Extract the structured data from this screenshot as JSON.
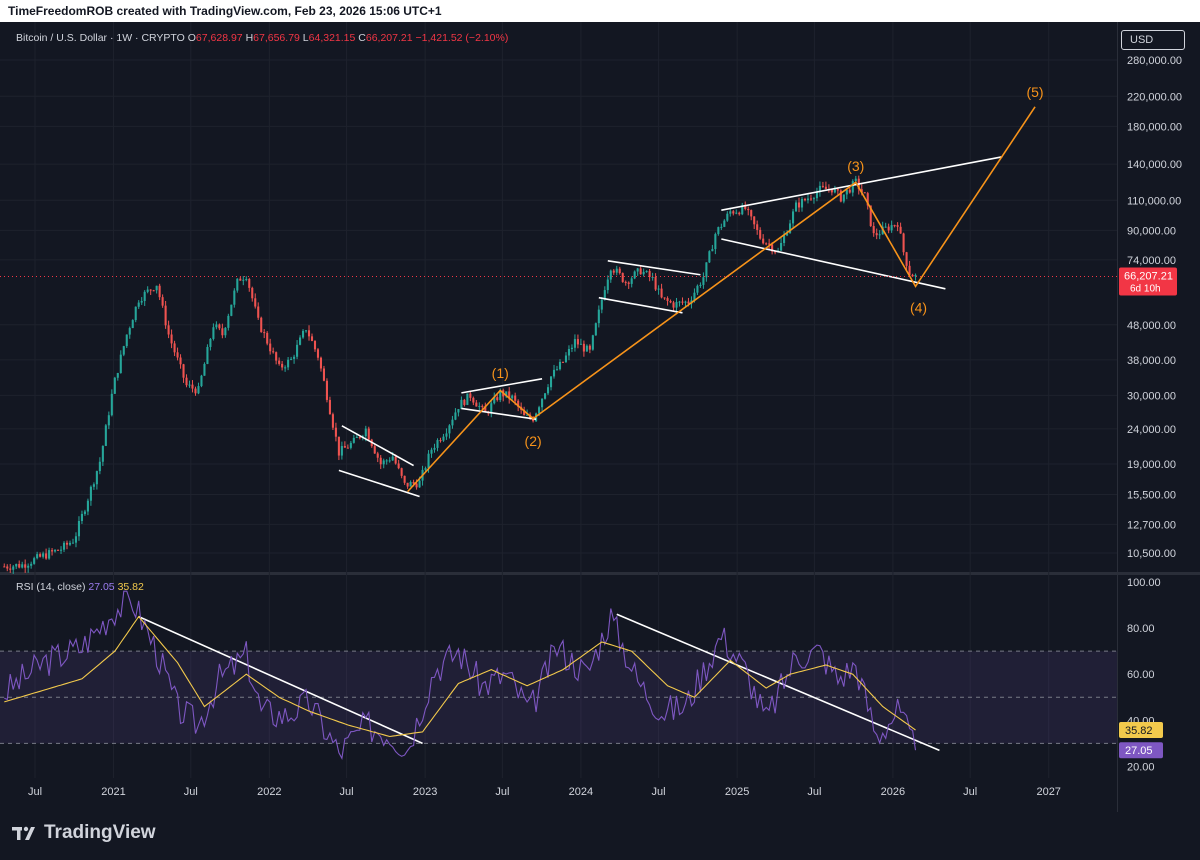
{
  "header": {
    "caption": "TimeFreedomROB created with TradingView.com, Feb 23, 2026 15:06 UTC+1"
  },
  "legend": {
    "symbol": "Bitcoin / U.S. Dollar · 1W · CRYPTO",
    "o_label": "O",
    "o_value": "67,628.97",
    "h_label": "H",
    "h_value": "67,656.79",
    "l_label": "L",
    "l_value": "64,321.15",
    "c_label": "C",
    "c_value": "66,207.21",
    "change": "−1,421.52 (−2.10%)"
  },
  "rsi_legend": {
    "label": "RSI (14, close)",
    "value": "27.05",
    "ma_value": "35.82"
  },
  "currency_button": "USD",
  "current_price": {
    "label": "66,207.21",
    "countdown": "6d 10h"
  },
  "brand": "TradingView",
  "colors": {
    "background": "#131722",
    "up": "#26a69a",
    "down": "#ef5350",
    "wave": "#f7931a",
    "trend": "#ffffff",
    "rsi": "#7e57c2",
    "rsi_ma": "#f2c94c",
    "rsi_band": "#7e57c2",
    "price_line": "#f23645"
  },
  "chart_data": [
    {
      "type": "candlestick",
      "title": "Bitcoin / U.S. Dollar · 1W · CRYPTO",
      "scale": "log",
      "ylim": [
        9500,
        320000
      ],
      "y_ticks": [
        {
          "value": 280000,
          "label": "280,000.00"
        },
        {
          "value": 220000,
          "label": "220,000.00"
        },
        {
          "value": 180000,
          "label": "180,000.00"
        },
        {
          "value": 140000,
          "label": "140,000.00"
        },
        {
          "value": 110000,
          "label": "110,000.00"
        },
        {
          "value": 90000,
          "label": "90,000.00"
        },
        {
          "value": 74000,
          "label": "74,000.00"
        },
        {
          "value": 48000,
          "label": "48,000.00"
        },
        {
          "value": 38000,
          "label": "38,000.00"
        },
        {
          "value": 30000,
          "label": "30,000.00"
        },
        {
          "value": 24000,
          "label": "24,000.00"
        },
        {
          "value": 19000,
          "label": "19,000.00"
        },
        {
          "value": 15500,
          "label": "15,500.00"
        },
        {
          "value": 12700,
          "label": "12,700.00"
        },
        {
          "value": 10500,
          "label": "10,500.00"
        }
      ],
      "x_ticks": [
        {
          "date": "2020-07-01",
          "label": "Jul"
        },
        {
          "date": "2021-01-01",
          "label": "2021"
        },
        {
          "date": "2021-07-01",
          "label": "Jul"
        },
        {
          "date": "2022-01-01",
          "label": "2022"
        },
        {
          "date": "2022-07-01",
          "label": "Jul"
        },
        {
          "date": "2023-01-01",
          "label": "2023"
        },
        {
          "date": "2023-07-01",
          "label": "Jul"
        },
        {
          "date": "2024-01-01",
          "label": "2024"
        },
        {
          "date": "2024-07-01",
          "label": "Jul"
        },
        {
          "date": "2025-01-01",
          "label": "2025"
        },
        {
          "date": "2025-07-01",
          "label": "Jul"
        },
        {
          "date": "2026-01-01",
          "label": "2026"
        },
        {
          "date": "2026-07-01",
          "label": "Jul"
        },
        {
          "date": "2027-01-01",
          "label": "2027"
        }
      ],
      "x_range": [
        "2020-04-10",
        "2027-06-10"
      ],
      "price_path": [
        [
          "2020-04-20",
          9600
        ],
        [
          "2020-06-01",
          9700
        ],
        [
          "2020-07-20",
          10300
        ],
        [
          "2020-09-01",
          10800
        ],
        [
          "2020-10-01",
          11500
        ],
        [
          "2020-11-01",
          15000
        ],
        [
          "2020-12-01",
          19500
        ],
        [
          "2021-01-01",
          32000
        ],
        [
          "2021-02-01",
          45000
        ],
        [
          "2021-03-01",
          57000
        ],
        [
          "2021-04-12",
          63000
        ],
        [
          "2021-05-10",
          45000
        ],
        [
          "2021-06-21",
          32000
        ],
        [
          "2021-07-19",
          31000
        ],
        [
          "2021-08-23",
          48000
        ],
        [
          "2021-09-13",
          45000
        ],
        [
          "2021-10-20",
          65000
        ],
        [
          "2021-11-08",
          67000
        ],
        [
          "2021-12-06",
          49000
        ],
        [
          "2022-01-24",
          36000
        ],
        [
          "2022-02-21",
          38000
        ],
        [
          "2022-03-28",
          47000
        ],
        [
          "2022-04-25",
          39000
        ],
        [
          "2022-05-16",
          30000
        ],
        [
          "2022-06-13",
          20500
        ],
        [
          "2022-07-18",
          22000
        ],
        [
          "2022-08-15",
          24000
        ],
        [
          "2022-09-19",
          19000
        ],
        [
          "2022-10-17",
          20000
        ],
        [
          "2022-11-14",
          16500
        ],
        [
          "2022-12-19",
          16800
        ],
        [
          "2023-01-16",
          21000
        ],
        [
          "2023-02-20",
          24000
        ],
        [
          "2023-03-20",
          28000
        ],
        [
          "2023-04-17",
          30000
        ],
        [
          "2023-05-22",
          26500
        ],
        [
          "2023-06-26",
          30500
        ],
        [
          "2023-07-24",
          29500
        ],
        [
          "2023-08-21",
          26000
        ],
        [
          "2023-09-11",
          25800
        ],
        [
          "2023-10-23",
          34000
        ],
        [
          "2023-11-20",
          37500
        ],
        [
          "2023-12-18",
          43000
        ],
        [
          "2024-01-22",
          40000
        ],
        [
          "2024-02-26",
          62000
        ],
        [
          "2024-03-11",
          71000
        ],
        [
          "2024-04-15",
          64000
        ],
        [
          "2024-05-20",
          69000
        ],
        [
          "2024-06-17",
          65000
        ],
        [
          "2024-07-08",
          57000
        ],
        [
          "2024-08-05",
          55000
        ],
        [
          "2024-09-09",
          56000
        ],
        [
          "2024-10-14",
          66000
        ],
        [
          "2024-11-11",
          88000
        ],
        [
          "2024-12-16",
          102000
        ],
        [
          "2025-01-20",
          104000
        ],
        [
          "2025-02-24",
          86000
        ],
        [
          "2025-04-07",
          78000
        ],
        [
          "2025-05-19",
          106000
        ],
        [
          "2025-07-14",
          118000
        ],
        [
          "2025-08-11",
          119000
        ],
        [
          "2025-09-01",
          112000
        ],
        [
          "2025-10-06",
          124000
        ],
        [
          "2025-10-27",
          113000
        ],
        [
          "2025-11-17",
          87000
        ],
        [
          "2025-12-08",
          90000
        ],
        [
          "2026-01-12",
          95000
        ],
        [
          "2026-01-26",
          78000
        ],
        [
          "2026-02-09",
          68000
        ],
        [
          "2026-02-23",
          66207
        ]
      ],
      "wave_labels": [
        {
          "label": "(1)",
          "date": "2023-06-26",
          "price": 31500
        },
        {
          "label": "(2)",
          "date": "2023-09-11",
          "price": 25500
        },
        {
          "label": "(3)",
          "date": "2025-10-06",
          "price": 125000
        },
        {
          "label": "(4)",
          "date": "2026-03-02",
          "price": 62000
        },
        {
          "label": "(5)",
          "date": "2026-11-30",
          "price": 205000
        }
      ]
    },
    {
      "type": "line",
      "title": "RSI (14, close)",
      "ylim": [
        15,
        100
      ],
      "y_ticks": [
        {
          "value": 100,
          "label": "100.00"
        },
        {
          "value": 80,
          "label": "80.00"
        },
        {
          "value": 60,
          "label": "60.00"
        },
        {
          "value": 40,
          "label": "40.00"
        },
        {
          "value": 20,
          "label": "20.00"
        }
      ],
      "bands": {
        "upper": 70,
        "middle": 50,
        "lower": 30
      },
      "series": [
        {
          "name": "RSI",
          "points": [
            [
              "2020-04-20",
              52
            ],
            [
              "2020-07-20",
              65
            ],
            [
              "2020-10-19",
              72
            ],
            [
              "2021-01-04",
              88
            ],
            [
              "2021-02-15",
              92
            ],
            [
              "2021-04-12",
              70
            ],
            [
              "2021-05-31",
              45
            ],
            [
              "2021-07-19",
              38
            ],
            [
              "2021-09-06",
              58
            ],
            [
              "2021-11-08",
              68
            ],
            [
              "2021-12-13",
              44
            ],
            [
              "2022-02-07",
              42
            ],
            [
              "2022-04-04",
              48
            ],
            [
              "2022-06-13",
              26
            ],
            [
              "2022-08-15",
              38
            ],
            [
              "2022-10-10",
              34
            ],
            [
              "2022-11-21",
              28
            ],
            [
              "2023-01-23",
              62
            ],
            [
              "2023-03-20",
              70
            ],
            [
              "2023-05-15",
              55
            ],
            [
              "2023-07-10",
              60
            ],
            [
              "2023-09-04",
              44
            ],
            [
              "2023-11-06",
              72
            ],
            [
              "2024-01-15",
              60
            ],
            [
              "2024-03-11",
              85
            ],
            [
              "2024-05-13",
              57
            ],
            [
              "2024-07-08",
              44
            ],
            [
              "2024-09-02",
              46
            ],
            [
              "2024-11-25",
              77
            ],
            [
              "2025-01-20",
              62
            ],
            [
              "2025-03-10",
              40
            ],
            [
              "2025-05-19",
              68
            ],
            [
              "2025-07-14",
              70
            ],
            [
              "2025-08-25",
              58
            ],
            [
              "2025-10-06",
              64
            ],
            [
              "2025-11-24",
              33
            ],
            [
              "2026-01-12",
              44
            ],
            [
              "2026-02-23",
              27.05
            ]
          ]
        },
        {
          "name": "RSI-based MA",
          "points": [
            [
              "2020-04-20",
              48
            ],
            [
              "2020-10-19",
              58
            ],
            [
              "2021-01-04",
              70
            ],
            [
              "2021-03-01",
              85
            ],
            [
              "2021-05-31",
              65
            ],
            [
              "2021-08-02",
              46
            ],
            [
              "2021-11-08",
              60
            ],
            [
              "2022-01-24",
              50
            ],
            [
              "2022-04-04",
              44
            ],
            [
              "2022-07-04",
              38
            ],
            [
              "2022-10-10",
              33
            ],
            [
              "2022-12-26",
              35
            ],
            [
              "2023-03-20",
              56
            ],
            [
              "2023-06-05",
              62
            ],
            [
              "2023-08-28",
              55
            ],
            [
              "2023-11-20",
              62
            ],
            [
              "2024-02-19",
              74
            ],
            [
              "2024-04-29",
              70
            ],
            [
              "2024-07-22",
              55
            ],
            [
              "2024-09-23",
              50
            ],
            [
              "2024-12-16",
              66
            ],
            [
              "2025-03-10",
              54
            ],
            [
              "2025-05-05",
              60
            ],
            [
              "2025-07-28",
              64
            ],
            [
              "2025-09-29",
              60
            ],
            [
              "2025-12-08",
              46
            ],
            [
              "2026-02-23",
              35.82
            ]
          ]
        }
      ]
    }
  ]
}
